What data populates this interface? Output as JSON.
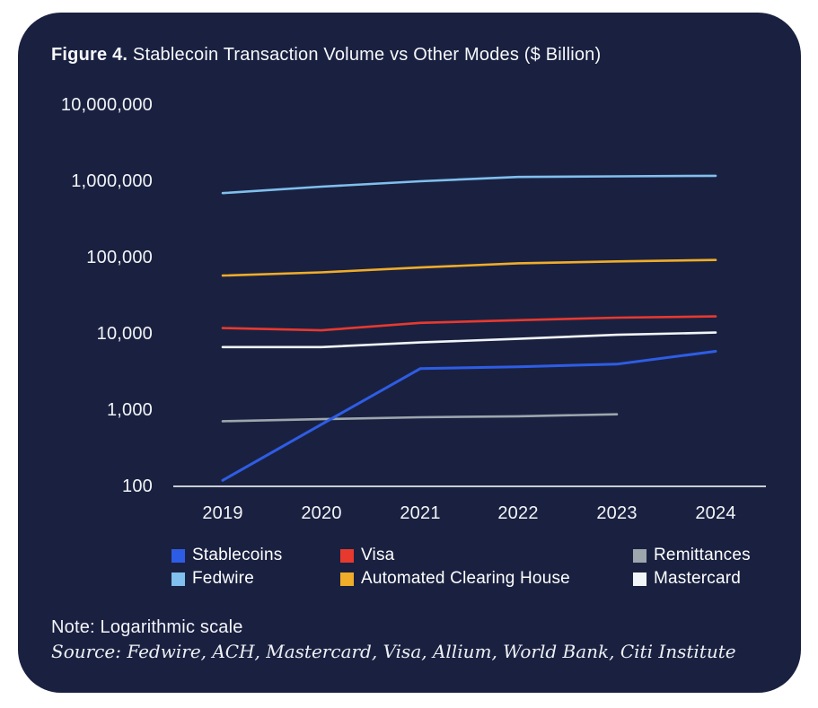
{
  "figure": {
    "title_prefix": "Figure 4.",
    "title_rest": "Stablecoin Transaction Volume vs Other Modes ($ Billion)",
    "note": "Note: Logarithmic scale",
    "source": "Source: Fedwire, ACH, Mastercard, Visa, Allium, World Bank, Citi Institute"
  },
  "colors": {
    "page_bg": "#ffffff",
    "card_bg": "#1a2140",
    "text": "#f5f6fa",
    "axis_line": "#c9cdd3"
  },
  "chart_data": {
    "type": "line",
    "title": "Stablecoin Transaction Volume vs Other Modes ($ Billion)",
    "x_labels": [
      "2019",
      "2020",
      "2021",
      "2022",
      "2023",
      "2024"
    ],
    "y_tick_labels": [
      "10,000,000",
      "1,000,000",
      "100,000",
      "10,000",
      "1,000",
      "100"
    ],
    "y_scale": "log",
    "ylim": [
      100,
      10000000
    ],
    "grid": false,
    "legend_position": "bottom",
    "series": [
      {
        "id": "stablecoins",
        "name": "Stablecoins",
        "color": "#2e5de5",
        "z": 10,
        "width": 3,
        "values": [
          120,
          650,
          3500,
          3700,
          4000,
          5900
        ]
      },
      {
        "id": "visa",
        "name": "Visa",
        "color": "#e8392f",
        "z": 2,
        "width": 2.6,
        "values": [
          11900,
          11100,
          13900,
          15100,
          16300,
          16900
        ]
      },
      {
        "id": "remittances",
        "name": "Remittances",
        "color": "#9da6ad",
        "z": 1,
        "width": 2.6,
        "values": [
          715,
          760,
          805,
          830,
          880,
          null
        ]
      },
      {
        "id": "fedwire",
        "name": "Fedwire",
        "color": "#80bfee",
        "z": 2,
        "width": 2.6,
        "values": [
          700000,
          850000,
          1000000,
          1140000,
          1160000,
          1180000
        ]
      },
      {
        "id": "ach",
        "name": "Automated Clearing House",
        "color": "#f0ad29",
        "z": 2,
        "width": 2.6,
        "values": [
          58000,
          64000,
          74000,
          84000,
          89000,
          93000
        ]
      },
      {
        "id": "mastercard",
        "name": "Mastercard",
        "color": "#f2f5f8",
        "z": 2,
        "width": 2.6,
        "values": [
          6700,
          6700,
          7700,
          8600,
          9700,
          10400
        ]
      }
    ]
  }
}
